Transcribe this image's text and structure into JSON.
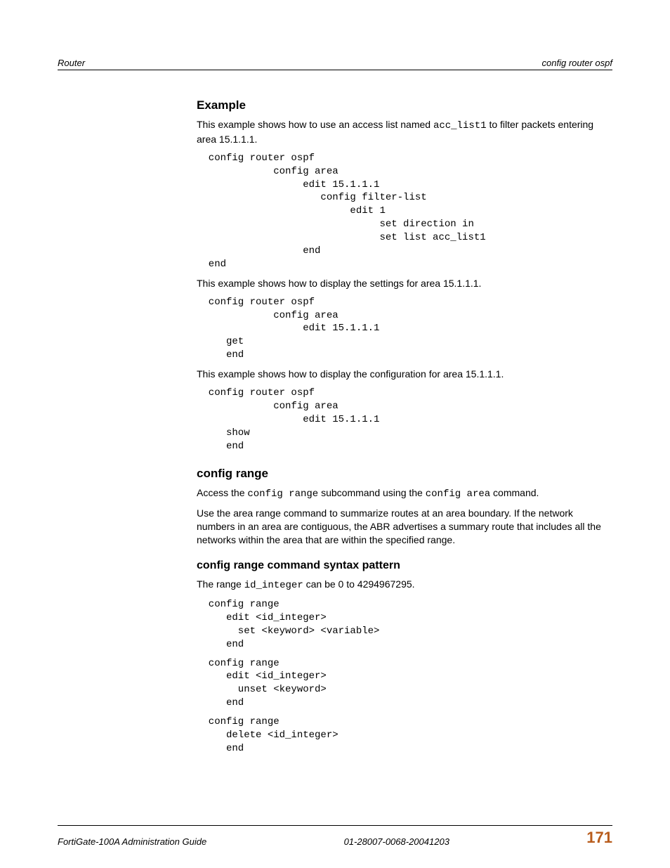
{
  "header": {
    "left": "Router",
    "right": "config router ospf"
  },
  "sections": {
    "example": {
      "heading": "Example",
      "intro_a": "This example shows how to use an access list named ",
      "intro_code": "acc_list1",
      "intro_b": " to filter packets entering area 15.1.1.1.",
      "code1": "  config router ospf\n             config area\n                  edit 15.1.1.1\n                     config filter-list\n                          edit 1\n                               set direction in\n                               set list acc_list1\n                  end\n  end",
      "para2": "This example shows how to display the settings for area 15.1.1.1.",
      "code2": "  config router ospf\n             config area\n                  edit 15.1.1.1\n     get\n     end",
      "para3": "This example shows how to display the configuration for area 15.1.1.1.",
      "code3": "  config router ospf\n             config area\n                  edit 15.1.1.1\n     show\n     end"
    },
    "configrange": {
      "heading": "config range",
      "access_a": "Access the ",
      "access_code1": "config range",
      "access_b": " subcommand using the ",
      "access_code2": "config area",
      "access_c": " command.",
      "para2": "Use the area range command to summarize routes at an area boundary. If the network numbers in an area are contiguous, the ABR advertises a summary route that includes all the networks within the area that are within the specified range."
    },
    "syntax": {
      "heading": "config range command syntax pattern",
      "para_a": "The range ",
      "para_code": "id_integer",
      "para_b": " can be 0 to 4294967295.",
      "code1": "  config range\n     edit <id_integer>\n       set <keyword> <variable>\n     end",
      "code2": "  config range\n     edit <id_integer>\n       unset <keyword>\n     end",
      "code3": "  config range\n     delete <id_integer>\n     end"
    }
  },
  "footer": {
    "left": "FortiGate-100A Administration Guide",
    "center": "01-28007-0068-20041203",
    "page": "171"
  }
}
